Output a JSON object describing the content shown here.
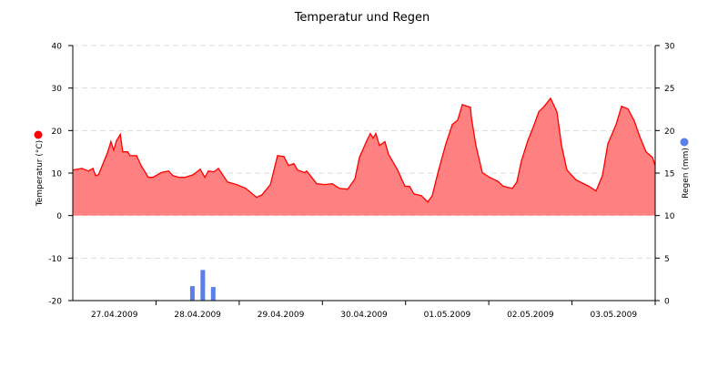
{
  "chart_data": {
    "type": "area+bar",
    "title": "Temperatur und Regen",
    "ylabel_left": "Temperatur (°C)",
    "ylabel_right": "Regen (mm)",
    "ylim_left": [
      -20,
      40
    ],
    "yticks_left": [
      "40",
      "30",
      "20",
      "10",
      "0",
      "-10",
      "-20"
    ],
    "ylim_right": [
      0,
      30
    ],
    "yticks_right": [
      "30",
      "25",
      "20",
      "15",
      "10",
      "5",
      "0"
    ],
    "xlim": [
      "27.04.2009 00:00",
      "04.05.2009 00:00"
    ],
    "xtick_labels": [
      "27.04.2009",
      "28.04.2009",
      "29.04.2009",
      "30.04.2009",
      "01.05.2009",
      "02.05.2009",
      "03.05.2009"
    ],
    "grid": true,
    "colors": {
      "temperature_line": "#ff0000",
      "temperature_fill": "#ff8080",
      "rain": "#5b7fe8"
    },
    "series": [
      {
        "name": "Temperatur (°C)",
        "type": "area",
        "axis": "left",
        "points": [
          [
            "27.04.2009 00:00",
            10.7
          ],
          [
            "27.04.2009 02:36",
            11.1
          ],
          [
            "27.04.2009 04:30",
            10.5
          ],
          [
            "27.04.2009 05:48",
            11.1
          ],
          [
            "27.04.2009 06:36",
            9.4
          ],
          [
            "27.04.2009 07:24",
            9.6
          ],
          [
            "27.04.2009 10:00",
            14.8
          ],
          [
            "27.04.2009 11:00",
            17.4
          ],
          [
            "27.04.2009 11:48",
            15.4
          ],
          [
            "27.04.2009 12:36",
            17.6
          ],
          [
            "27.04.2009 13:42",
            19.1
          ],
          [
            "27.04.2009 14:24",
            15.0
          ],
          [
            "27.04.2009 15:48",
            15.0
          ],
          [
            "27.04.2009 16:30",
            14.1
          ],
          [
            "27.04.2009 18:24",
            14.1
          ],
          [
            "27.04.2009 19:42",
            11.8
          ],
          [
            "27.04.2009 21:48",
            9.0
          ],
          [
            "27.04.2009 23:06",
            9.0
          ],
          [
            "28.04.2009 01:30",
            10.1
          ],
          [
            "28.04.2009 03:36",
            10.5
          ],
          [
            "28.04.2009 04:54",
            9.4
          ],
          [
            "28.04.2009 06:42",
            9.0
          ],
          [
            "28.04.2009 08:18",
            9.0
          ],
          [
            "28.04.2009 10:42",
            9.6
          ],
          [
            "28.04.2009 12:45",
            10.9
          ],
          [
            "28.04.2009 14:06",
            9.0
          ],
          [
            "28.04.2009 15:06",
            10.5
          ],
          [
            "28.04.2009 16:42",
            10.3
          ],
          [
            "28.04.2009 18:00",
            11.1
          ],
          [
            "28.04.2009 20:37",
            7.9
          ],
          [
            "28.04.2009 23:15",
            7.3
          ],
          [
            "29.04.2009 01:52",
            6.4
          ],
          [
            "29.04.2009 05:01",
            4.3
          ],
          [
            "29.04.2009 06:36",
            4.9
          ],
          [
            "29.04.2009 09:00",
            7.3
          ],
          [
            "29.04.2009 11:04",
            14.1
          ],
          [
            "29.04.2009 12:54",
            13.9
          ],
          [
            "29.04.2009 14:13",
            11.8
          ],
          [
            "29.04.2009 15:47",
            12.2
          ],
          [
            "29.04.2009 16:50",
            10.7
          ],
          [
            "29.04.2009 18:56",
            10.1
          ],
          [
            "29.04.2009 19:27",
            10.5
          ],
          [
            "29.04.2009 22:21",
            7.5
          ],
          [
            "30.04.2009 00:43",
            7.3
          ],
          [
            "30.04.2009 02:49",
            7.5
          ],
          [
            "30.04.2009 04:55",
            6.4
          ],
          [
            "30.04.2009 07:16",
            6.2
          ],
          [
            "30.04.2009 09:22",
            8.6
          ],
          [
            "30.04.2009 10:41",
            13.7
          ],
          [
            "30.04.2009 12:47",
            17.6
          ],
          [
            "30.04.2009 13:50",
            19.3
          ],
          [
            "30.04.2009 14:37",
            18.2
          ],
          [
            "30.04.2009 15:24",
            19.3
          ],
          [
            "30.04.2009 16:27",
            16.5
          ],
          [
            "30.04.2009 18:02",
            17.4
          ],
          [
            "30.04.2009 19:05",
            14.4
          ],
          [
            "30.04.2009 21:42",
            10.7
          ],
          [
            "30.04.2009 23:48",
            6.9
          ],
          [
            "01.05.2009 01:07",
            6.9
          ],
          [
            "01.05.2009 02:26",
            5.1
          ],
          [
            "01.05.2009 04:31",
            4.7
          ],
          [
            "01.05.2009 06:22",
            3.2
          ],
          [
            "01.05.2009 07:41",
            4.7
          ],
          [
            "01.05.2009 09:31",
            10.7
          ],
          [
            "01.05.2009 11:37",
            16.9
          ],
          [
            "01.05.2009 13:27",
            21.4
          ],
          [
            "01.05.2009 15:02",
            22.5
          ],
          [
            "01.05.2009 16:21",
            26.1
          ],
          [
            "01.05.2009 18:43",
            25.5
          ],
          [
            "01.05.2009 19:00",
            22.9
          ],
          [
            "01.05.2009 20:17",
            16.5
          ],
          [
            "01.05.2009 22:07",
            10.1
          ],
          [
            "02.05.2009 00:13",
            9.0
          ],
          [
            "02.05.2009 02:35",
            8.1
          ],
          [
            "02.05.2009 04:10",
            6.9
          ],
          [
            "02.05.2009 06:47",
            6.4
          ],
          [
            "02.05.2009 08:06",
            7.9
          ],
          [
            "02.05.2009 09:25",
            12.9
          ],
          [
            "02.05.2009 11:15",
            17.6
          ],
          [
            "02.05.2009 13:05",
            21.4
          ],
          [
            "02.05.2009 14:24",
            24.4
          ],
          [
            "02.05.2009 16:00",
            25.7
          ],
          [
            "02.05.2009 17:49",
            27.6
          ],
          [
            "02.05.2009 19:39",
            24.4
          ],
          [
            "02.05.2009 21:00",
            16.5
          ],
          [
            "02.05.2009 22:32",
            10.7
          ],
          [
            "03.05.2009 01:09",
            8.4
          ],
          [
            "03.05.2009 04:50",
            6.9
          ],
          [
            "03.05.2009 06:56",
            5.8
          ],
          [
            "03.05.2009 08:46",
            9.4
          ],
          [
            "03.05.2009 10:21",
            16.9
          ],
          [
            "03.05.2009 12:43",
            21.4
          ],
          [
            "03.05.2009 14:17",
            25.7
          ],
          [
            "03.05.2009 16:07",
            25.1
          ],
          [
            "03.05.2009 17:58",
            22.3
          ],
          [
            "03.05.2009 19:32",
            18.6
          ],
          [
            "03.05.2009 21:22",
            15.0
          ],
          [
            "03.05.2009 23:13",
            13.7
          ],
          [
            "04.05.2009 00:00",
            11.8
          ]
        ]
      },
      {
        "name": "Regen (mm)",
        "type": "bar",
        "axis": "right",
        "points": [
          [
            "28.04.2009 10:30",
            1.7
          ],
          [
            "28.04.2009 13:30",
            3.6
          ],
          [
            "28.04.2009 16:30",
            1.6
          ]
        ]
      }
    ]
  }
}
